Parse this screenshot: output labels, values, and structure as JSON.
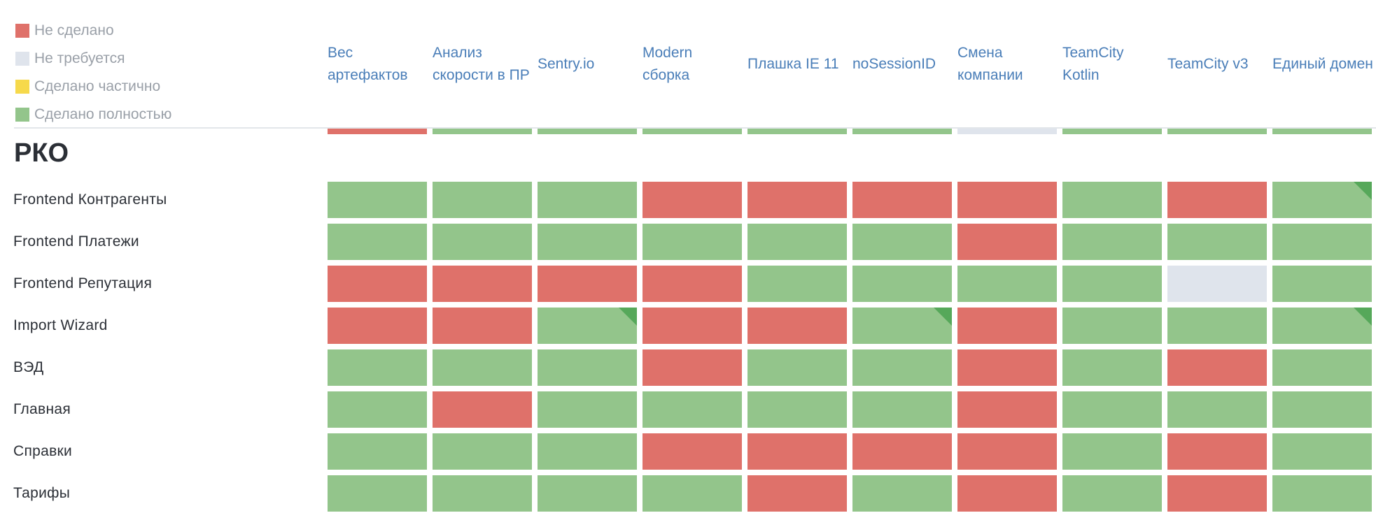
{
  "colors": {
    "not_done": "#df716a",
    "not_required": "#dfe4ec",
    "partial": "#f6d94b",
    "done": "#93c58b",
    "corner": "#56a85a"
  },
  "legend": [
    {
      "label": "Не сделано",
      "status": "not_done"
    },
    {
      "label": "Не требуется",
      "status": "not_required"
    },
    {
      "label": "Сделано частично",
      "status": "partial"
    },
    {
      "label": "Сделано полностью",
      "status": "done"
    }
  ],
  "columns": [
    "Вес артефактов",
    "Анализ скорости в ПР",
    "Sentry.io",
    "Modern сборка",
    "Плашка IE 11",
    "noSessionID",
    "Смена компании",
    "TeamCity Kotlin",
    "TeamCity v3",
    "Единый домен"
  ],
  "summary_strip": [
    "not_done",
    "done",
    "done",
    "done",
    "done",
    "done",
    "not_required",
    "done",
    "done",
    "done"
  ],
  "section": {
    "title": "РКО",
    "rows": [
      {
        "name": "Frontend Контрагенты",
        "cells": [
          "done",
          "done",
          "done",
          "not_done",
          "not_done",
          "not_done",
          "not_done",
          "done",
          "not_done",
          "done*"
        ]
      },
      {
        "name": "Frontend Платежи",
        "cells": [
          "done",
          "done",
          "done",
          "done",
          "done",
          "done",
          "not_done",
          "done",
          "done",
          "done"
        ]
      },
      {
        "name": "Frontend Репутация",
        "cells": [
          "not_done",
          "not_done",
          "not_done",
          "not_done",
          "done",
          "done",
          "done",
          "done",
          "not_required",
          "done"
        ]
      },
      {
        "name": "Import Wizard",
        "cells": [
          "not_done",
          "not_done",
          "done*",
          "not_done",
          "not_done",
          "done*",
          "not_done",
          "done",
          "done",
          "done*"
        ]
      },
      {
        "name": "ВЭД",
        "cells": [
          "done",
          "done",
          "done",
          "not_done",
          "done",
          "done",
          "not_done",
          "done",
          "not_done",
          "done"
        ]
      },
      {
        "name": "Главная",
        "cells": [
          "done",
          "not_done",
          "done",
          "done",
          "done",
          "done",
          "not_done",
          "done",
          "done",
          "done"
        ]
      },
      {
        "name": "Справки",
        "cells": [
          "done",
          "done",
          "done",
          "not_done",
          "not_done",
          "not_done",
          "not_done",
          "done",
          "not_done",
          "done"
        ]
      },
      {
        "name": "Тарифы",
        "cells": [
          "done",
          "done",
          "done",
          "done",
          "not_done",
          "done",
          "not_done",
          "done",
          "not_done",
          "done"
        ]
      }
    ]
  }
}
